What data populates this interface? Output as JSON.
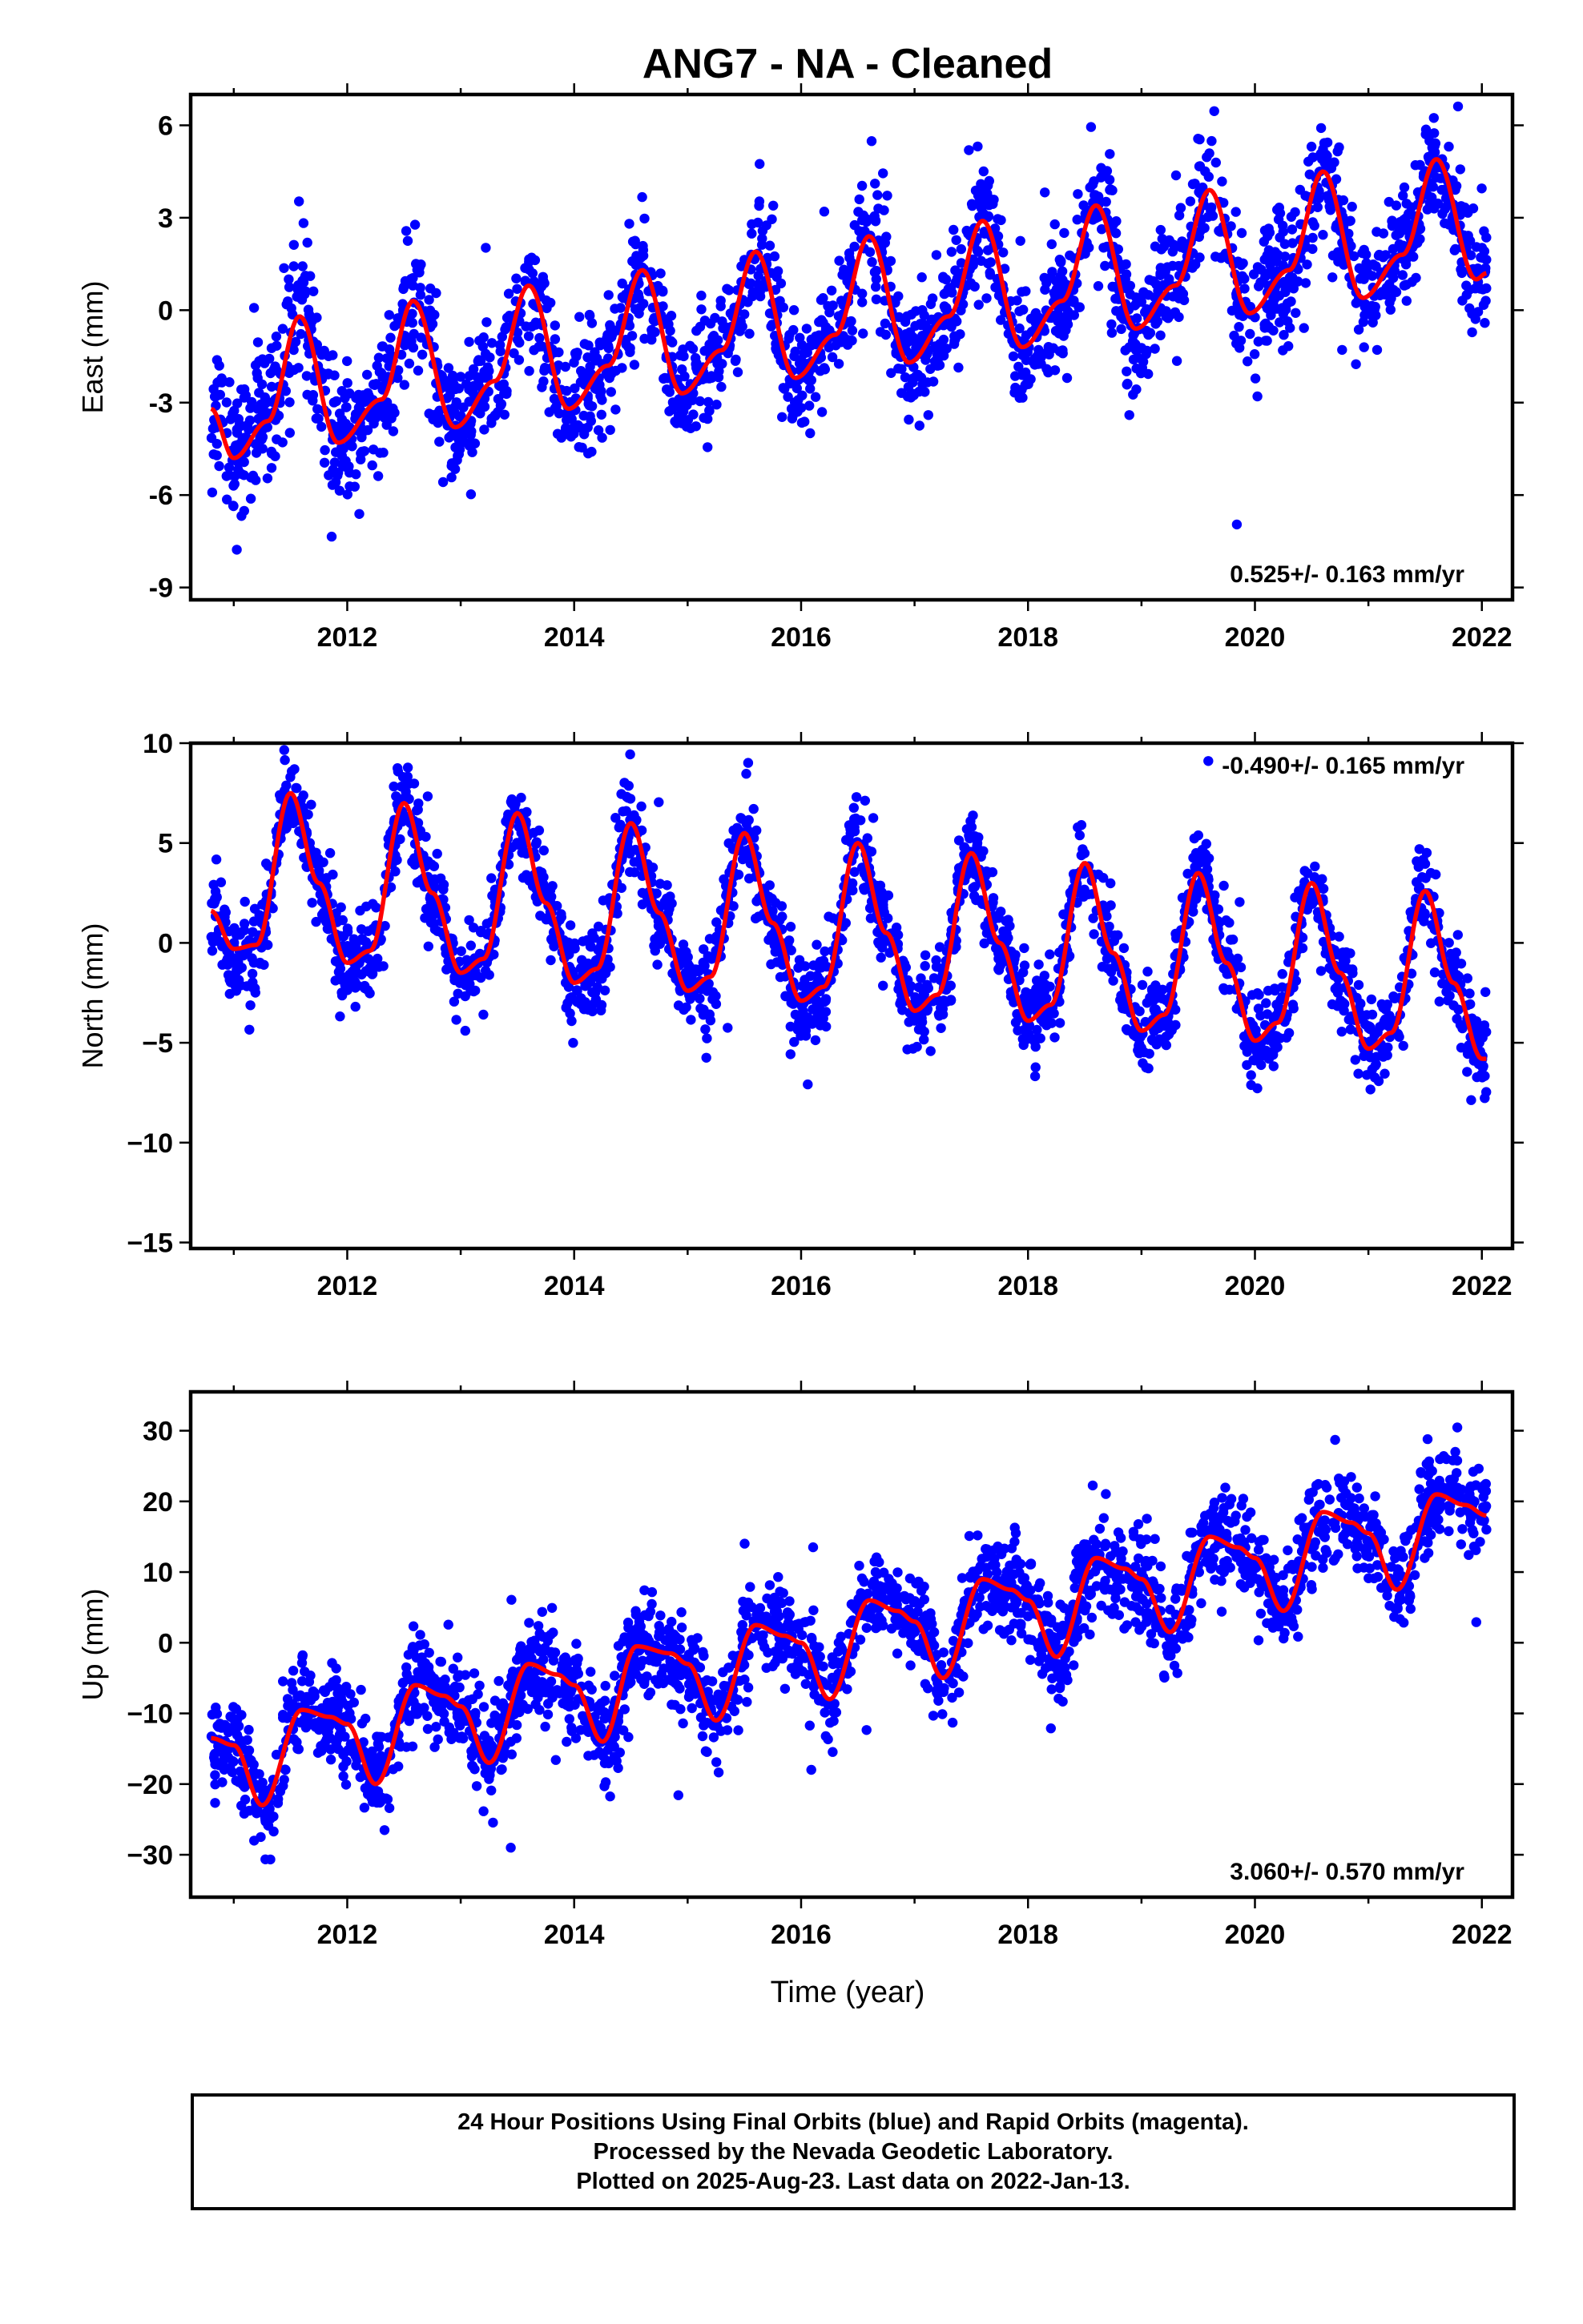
{
  "figure": {
    "title": "ANG7  - NA - Cleaned",
    "xlabel": "Time (year)"
  },
  "colors": {
    "data": "#0000ff",
    "model": "#ff0000",
    "frame": "#000000"
  },
  "chart_data": [
    {
      "type": "scatter",
      "name": "East",
      "ylabel": "East (mm)",
      "rate_label": "0.525+/- 0.163 mm/yr",
      "rate_position": "bottom-right",
      "xlim": [
        2010.62,
        2022.27
      ],
      "ylim": [
        -9.4,
        7.0
      ],
      "xticks": [
        2012,
        2014,
        2016,
        2018,
        2020,
        2022
      ],
      "xtick_labels": [
        "2012",
        "2014",
        "2016",
        "2018",
        "2020",
        "2022"
      ],
      "yticks": [
        6,
        3,
        0,
        -3,
        -6,
        -9
      ],
      "ytick_labels": [
        "6",
        "3",
        "0",
        "-3",
        "-6",
        "-9"
      ],
      "x_range": [
        2010.8,
        2022.04
      ],
      "model": {
        "start": 2010.8,
        "end": 2022.04,
        "offset": -3.8,
        "trend": 0.525,
        "amp1": 1.3,
        "phase1": 2011.55,
        "amp2": 1.2,
        "phase2": 2011.62,
        "amp1_growth": 0.02
      },
      "scatter": {
        "n": 2400,
        "noise": 1.05,
        "seed": 11
      },
      "model_curve": [
        [
          2010.8,
          -3.2
        ],
        [
          2011.0,
          -4.8
        ],
        [
          2011.3,
          -3.6
        ],
        [
          2011.58,
          -0.2
        ],
        [
          2011.92,
          -4.3
        ],
        [
          2012.3,
          -2.9
        ],
        [
          2012.58,
          0.3
        ],
        [
          2012.95,
          -3.8
        ],
        [
          2013.3,
          -2.3
        ],
        [
          2013.6,
          0.8
        ],
        [
          2013.95,
          -3.2
        ],
        [
          2014.3,
          -1.8
        ],
        [
          2014.6,
          1.3
        ],
        [
          2014.95,
          -2.7
        ],
        [
          2015.3,
          -1.3
        ],
        [
          2015.6,
          1.9
        ],
        [
          2015.95,
          -2.2
        ],
        [
          2016.3,
          -0.8
        ],
        [
          2016.6,
          2.4
        ],
        [
          2016.95,
          -1.7
        ],
        [
          2017.3,
          -0.2
        ],
        [
          2017.6,
          2.9
        ],
        [
          2017.95,
          -1.2
        ],
        [
          2018.3,
          0.3
        ],
        [
          2018.6,
          3.4
        ],
        [
          2018.95,
          -0.6
        ],
        [
          2019.3,
          0.8
        ],
        [
          2019.6,
          3.9
        ],
        [
          2019.95,
          -0.1
        ],
        [
          2020.3,
          1.3
        ],
        [
          2020.6,
          4.5
        ],
        [
          2020.95,
          0.4
        ],
        [
          2021.3,
          1.8
        ],
        [
          2021.6,
          4.9
        ],
        [
          2021.95,
          1.0
        ],
        [
          2022.04,
          1.2
        ]
      ]
    },
    {
      "type": "scatter",
      "name": "North",
      "ylabel": "North (mm)",
      "rate_label": "-0.490+/- 0.165 mm/yr",
      "rate_position": "top-right",
      "xlim": [
        2010.62,
        2022.27
      ],
      "ylim": [
        -15.3,
        10.0
      ],
      "xticks": [
        2012,
        2014,
        2016,
        2018,
        2020,
        2022
      ],
      "xtick_labels": [
        "2012",
        "2014",
        "2016",
        "2018",
        "2020",
        "2022"
      ],
      "yticks": [
        10,
        5,
        0,
        -5,
        -10,
        -15
      ],
      "ytick_labels": [
        "10",
        "5",
        "0",
        "−10",
        "−15"
      ],
      "ytick_label_values": [
        10,
        5,
        0,
        -10,
        -15
      ],
      "ytick_minus_five_label": "−5",
      "x_range": [
        2010.8,
        2022.04
      ],
      "scatter": {
        "n": 2400,
        "noise": 1.1,
        "seed": 23
      },
      "model_curve": [
        [
          2010.8,
          1.6
        ],
        [
          2011.0,
          -0.3
        ],
        [
          2011.2,
          -0.1
        ],
        [
          2011.5,
          7.5
        ],
        [
          2011.75,
          3.0
        ],
        [
          2012.0,
          -1.0
        ],
        [
          2012.2,
          -0.4
        ],
        [
          2012.5,
          7.0
        ],
        [
          2012.75,
          2.5
        ],
        [
          2013.0,
          -1.5
        ],
        [
          2013.2,
          -0.8
        ],
        [
          2013.5,
          6.5
        ],
        [
          2013.75,
          2.0
        ],
        [
          2014.0,
          -2.0
        ],
        [
          2014.2,
          -1.3
        ],
        [
          2014.5,
          6.0
        ],
        [
          2014.75,
          1.5
        ],
        [
          2015.0,
          -2.4
        ],
        [
          2015.2,
          -1.7
        ],
        [
          2015.5,
          5.5
        ],
        [
          2015.75,
          1.0
        ],
        [
          2016.0,
          -2.9
        ],
        [
          2016.2,
          -2.2
        ],
        [
          2016.5,
          5.0
        ],
        [
          2016.75,
          0.5
        ],
        [
          2017.0,
          -3.4
        ],
        [
          2017.2,
          -2.6
        ],
        [
          2017.5,
          4.5
        ],
        [
          2017.75,
          0.0
        ],
        [
          2018.0,
          -3.9
        ],
        [
          2018.2,
          -3.1
        ],
        [
          2018.5,
          4.0
        ],
        [
          2018.75,
          -0.5
        ],
        [
          2019.0,
          -4.4
        ],
        [
          2019.2,
          -3.6
        ],
        [
          2019.5,
          3.5
        ],
        [
          2019.75,
          -1.0
        ],
        [
          2020.0,
          -4.9
        ],
        [
          2020.2,
          -4.0
        ],
        [
          2020.5,
          3.0
        ],
        [
          2020.75,
          -1.5
        ],
        [
          2021.0,
          -5.3
        ],
        [
          2021.2,
          -4.5
        ],
        [
          2021.5,
          2.6
        ],
        [
          2021.75,
          -2.0
        ],
        [
          2022.0,
          -5.8
        ],
        [
          2022.04,
          -5.8
        ]
      ]
    },
    {
      "type": "scatter",
      "name": "Up",
      "ylabel": "Up (mm)",
      "rate_label": "3.060+/- 0.570 mm/yr",
      "rate_position": "bottom-right",
      "xlim": [
        2010.62,
        2022.27
      ],
      "ylim": [
        -36,
        35.5
      ],
      "xticks": [
        2012,
        2014,
        2016,
        2018,
        2020,
        2022
      ],
      "xtick_labels": [
        "2012",
        "2014",
        "2016",
        "2018",
        "2020",
        "2022"
      ],
      "yticks": [
        30,
        20,
        10,
        0,
        -10,
        -20,
        -30
      ],
      "ytick_labels": [
        "30",
        "20",
        "10",
        "0",
        "−10",
        "−20",
        "−30"
      ],
      "x_range": [
        2010.8,
        2022.04
      ],
      "scatter": {
        "n": 2400,
        "noise": 3.4,
        "seed": 37
      },
      "model_curve": [
        [
          2010.8,
          -13.5
        ],
        [
          2011.0,
          -14.5
        ],
        [
          2011.25,
          -23.0
        ],
        [
          2011.6,
          -9.5
        ],
        [
          2011.85,
          -10.5
        ],
        [
          2012.0,
          -11.5
        ],
        [
          2012.25,
          -20.0
        ],
        [
          2012.6,
          -6.0
        ],
        [
          2012.85,
          -7.5
        ],
        [
          2013.0,
          -9.0
        ],
        [
          2013.25,
          -17.0
        ],
        [
          2013.6,
          -3.0
        ],
        [
          2013.85,
          -4.5
        ],
        [
          2014.0,
          -6.0
        ],
        [
          2014.25,
          -14.0
        ],
        [
          2014.55,
          -0.5
        ],
        [
          2014.85,
          -1.5
        ],
        [
          2015.0,
          -3.0
        ],
        [
          2015.25,
          -11.0
        ],
        [
          2015.6,
          2.5
        ],
        [
          2015.85,
          1.0
        ],
        [
          2016.0,
          0.0
        ],
        [
          2016.25,
          -8.0
        ],
        [
          2016.6,
          6.0
        ],
        [
          2016.85,
          4.5
        ],
        [
          2017.0,
          3.0
        ],
        [
          2017.25,
          -5.0
        ],
        [
          2017.6,
          9.0
        ],
        [
          2017.85,
          7.5
        ],
        [
          2018.0,
          6.0
        ],
        [
          2018.25,
          -2.0
        ],
        [
          2018.6,
          12.0
        ],
        [
          2018.85,
          10.5
        ],
        [
          2019.0,
          9.0
        ],
        [
          2019.25,
          1.5
        ],
        [
          2019.6,
          15.0
        ],
        [
          2019.85,
          13.5
        ],
        [
          2020.0,
          12.0
        ],
        [
          2020.25,
          4.5
        ],
        [
          2020.6,
          18.5
        ],
        [
          2020.85,
          17.0
        ],
        [
          2021.0,
          15.5
        ],
        [
          2021.25,
          7.5
        ],
        [
          2021.6,
          21.0
        ],
        [
          2021.85,
          19.5
        ],
        [
          2022.04,
          18.0
        ]
      ]
    }
  ],
  "footer": {
    "line1": "24 Hour Positions Using Final Orbits (blue) and Rapid Orbits (magenta).",
    "line2": "Processed by the Nevada Geodetic Laboratory.",
    "line3": "Plotted on 2025-Aug-23. Last data on 2022-Jan-13."
  }
}
